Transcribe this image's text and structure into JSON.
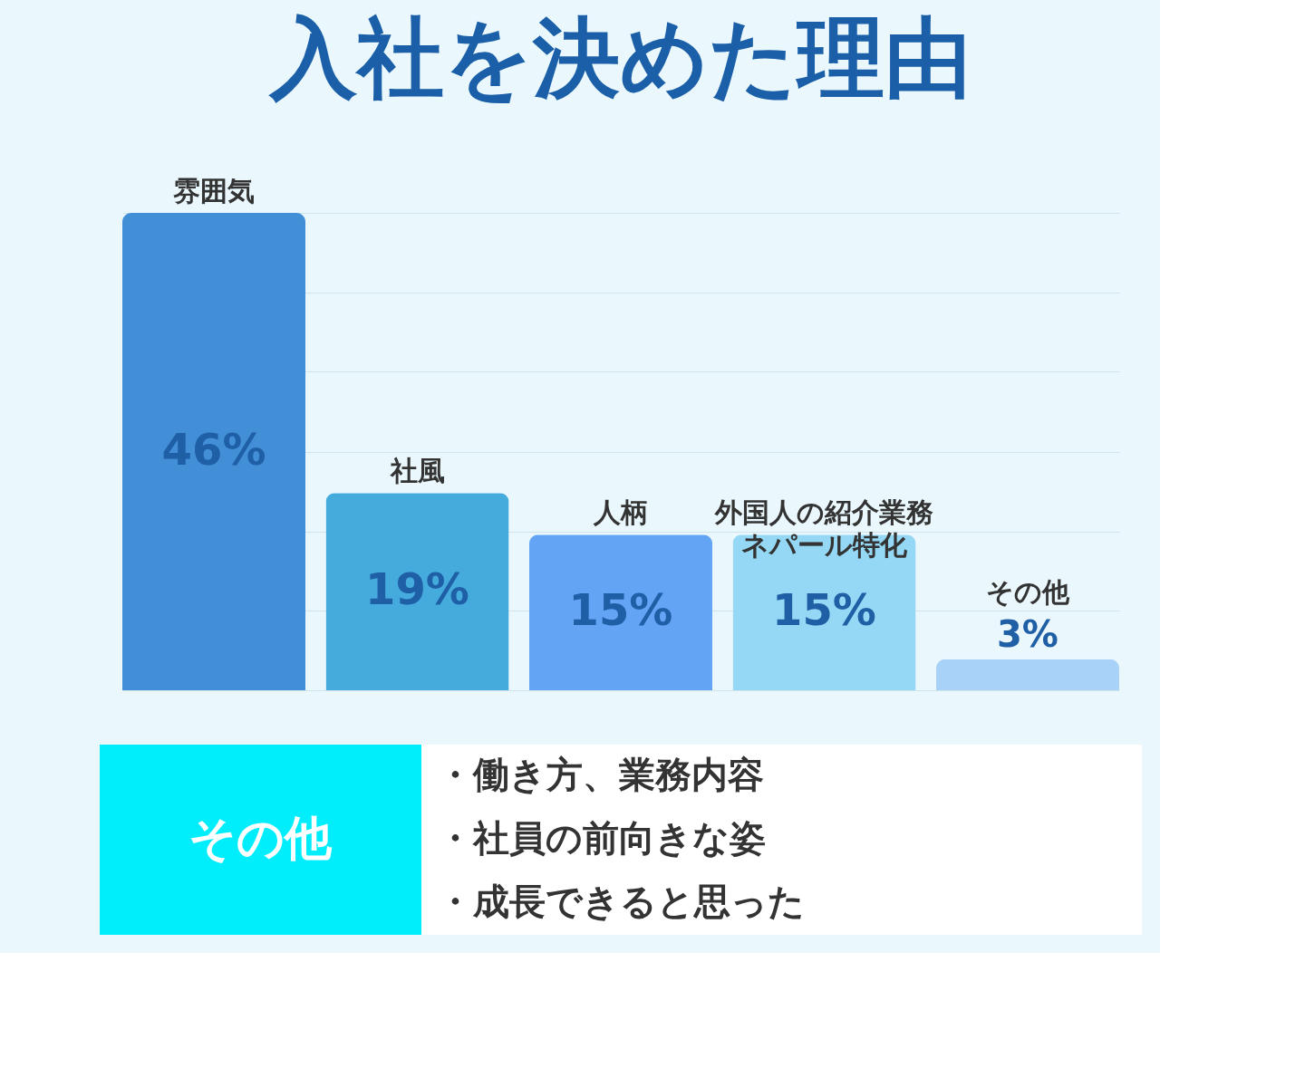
{
  "chart_data": {
    "type": "bar",
    "title": "入社を決めた理由",
    "categories": [
      "雰囲気",
      "社風",
      "人柄",
      "外国人の紹介業務ネパール特化",
      "その他"
    ],
    "values": [
      46,
      19,
      15,
      15,
      3
    ],
    "colors": [
      "#428fd8",
      "#45aadc",
      "#63a4f5",
      "#94d8f5",
      "#a9d2f8"
    ],
    "value_labels": [
      "46%",
      "19%",
      "15%",
      "15%",
      "3%"
    ],
    "ylim": [
      0,
      46
    ],
    "yticks": [
      {
        "value": 0,
        "label": null
      },
      {
        "value": 7.7,
        "label": null
      },
      {
        "value": 15.3,
        "label": null
      },
      {
        "value": 23,
        "label": null
      },
      {
        "value": 30.7,
        "label": null
      },
      {
        "value": 38.3,
        "label": null
      },
      {
        "value": 46,
        "label": null
      }
    ],
    "grid": "y",
    "tick_labels": false,
    "annotations": [
      "その他",
      "・働き方、業務内容",
      "・社員の前向きな姿",
      "・成長できると思った"
    ]
  }
}
